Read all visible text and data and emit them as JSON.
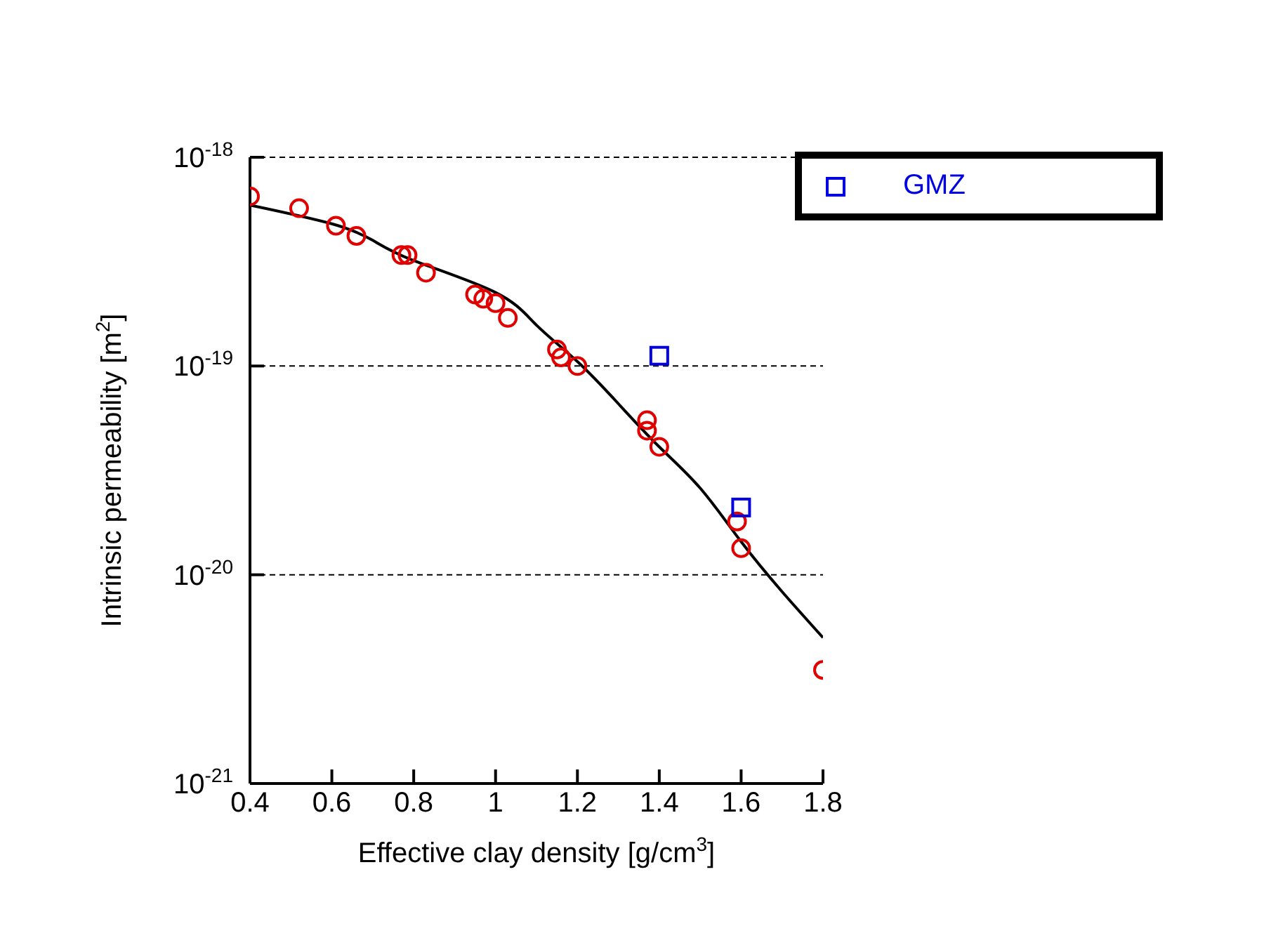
{
  "chart_data": {
    "type": "scatter",
    "xlabel": "Effective clay density [g/cm$^{3}$]",
    "ylabel": "Intrinsic permeability [m$^{2}$]",
    "log": "y",
    "xlim": [
      0.4,
      1.8
    ],
    "xticks": [
      0.4,
      0.6,
      0.8,
      1.0,
      1.2,
      1.4,
      1.6,
      1.8
    ],
    "ylim": [
      1e-21,
      1e-18
    ],
    "yticks": [
      {
        "value": 1e-21,
        "label": "10$^{-21}$"
      },
      {
        "value": 1e-20,
        "label": "10$^{-20}$"
      },
      {
        "value": 1e-19,
        "label": "10$^{-19}$"
      },
      {
        "value": 1e-18,
        "label": "10$^{-18}$"
      }
    ],
    "grid": "y",
    "legend": "top right",
    "series": [
      {
        "color": "#e00000",
        "marker": "circle",
        "x": [
          0.4,
          0.52,
          0.61,
          0.66,
          0.77,
          0.785,
          0.83,
          0.95,
          0.97,
          1.0,
          1.03,
          1.15,
          1.16,
          1.2,
          1.37,
          1.37,
          1.4,
          1.59,
          1.6,
          1.8
        ],
        "values": [
          6.5e-19,
          5.7e-19,
          4.7e-19,
          4.2e-19,
          3.4e-19,
          3.4e-19,
          2.8e-19,
          2.2e-19,
          2.1e-19,
          2e-19,
          1.7e-19,
          1.2e-19,
          1.1e-19,
          1e-19,
          5.5e-20,
          4.9e-20,
          4.1e-20,
          1.8e-20,
          1.34e-20,
          3.5e-21
        ]
      },
      {
        "name": "GMZ",
        "color": "#0000e0",
        "marker": "square",
        "x": [
          1.4,
          1.6
        ],
        "values": [
          1.12e-19,
          2.1e-20
        ]
      },
      {
        "type": "line",
        "color": "#000000",
        "marker": "none",
        "line_style": "solid",
        "x": [
          0.4,
          0.6,
          0.7,
          0.8,
          1.0,
          1.1,
          1.2,
          1.3,
          1.4,
          1.5,
          1.6,
          1.7,
          1.8
        ],
        "values": [
          5.9e-19,
          4.8e-19,
          4e-19,
          3.2e-19,
          2.25e-19,
          1.57e-19,
          1.05e-19,
          6.6e-20,
          4.1e-20,
          2.6e-20,
          1.44e-20,
          8.3e-21,
          5e-21
        ]
      }
    ]
  }
}
